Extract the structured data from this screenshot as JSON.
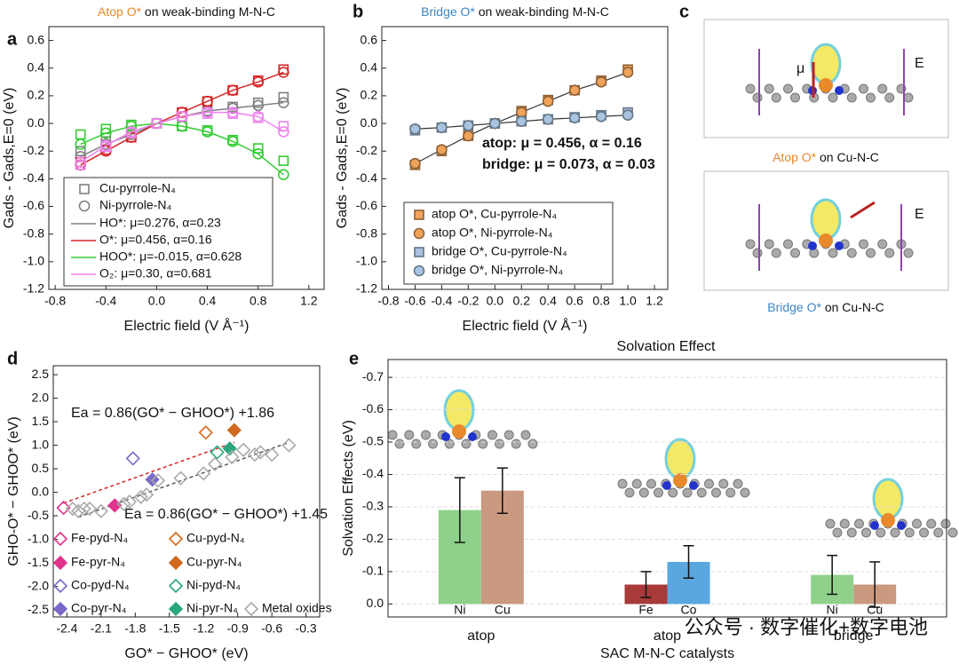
{
  "chart_data": [
    {
      "type": "line",
      "panel": "a",
      "title_parts": [
        "Atop O*",
        " on weak-binding M-N-C"
      ],
      "title_color": "#e8892b",
      "xlabel": "Electric field (V Å⁻¹)",
      "ylabel": "Gads - Gads,E=0 (eV)",
      "x": [
        -0.6,
        -0.4,
        -0.2,
        0,
        0.2,
        0.4,
        0.6,
        0.8,
        1.0
      ],
      "xlim": [
        -0.85,
        1.32
      ],
      "xticks": [
        -0.8,
        -0.4,
        {
          "value": 0,
          "label": "0.0"
        },
        0.4,
        0.8,
        1.2
      ],
      "ylim": [
        -1.2,
        0.7
      ],
      "yticks": [
        {
          "value": -1.2,
          "label": "-1.2"
        },
        {
          "value": -1,
          "label": "-1.0"
        },
        -0.8,
        -0.6,
        -0.4,
        -0.2,
        {
          "value": 0,
          "label": "0.0"
        },
        0.2,
        0.4,
        0.6
      ],
      "marker_legend": [
        "Cu-pyrrole-N₄",
        "Ni-pyrrole-N₄"
      ],
      "series": [
        {
          "name": "HO*: μ=0.276, α=0.23",
          "color": "#808080",
          "values_cu": [
            -0.2,
            -0.13,
            -0.07,
            0,
            0.05,
            0.09,
            0.12,
            0.15,
            0.19
          ],
          "values_ni": [
            -0.24,
            -0.15,
            -0.08,
            0,
            0.05,
            0.09,
            0.11,
            0.13,
            0.15
          ]
        },
        {
          "name": "O*: μ=0.456, α=0.16",
          "color": "#d62728",
          "values_cu": [
            -0.28,
            -0.19,
            -0.1,
            0,
            0.08,
            0.16,
            0.24,
            0.31,
            0.39
          ],
          "values_ni": [
            -0.3,
            -0.2,
            -0.1,
            0,
            0.08,
            0.16,
            0.24,
            0.3,
            0.37
          ]
        },
        {
          "name": "HOO*: μ=-0.015, α=0.628",
          "color": "#33cc33",
          "values_cu": [
            -0.08,
            -0.04,
            -0.01,
            0,
            -0.02,
            -0.05,
            -0.12,
            -0.18,
            -0.27
          ],
          "values_ni": [
            -0.15,
            -0.07,
            -0.02,
            0,
            -0.02,
            -0.06,
            -0.13,
            -0.22,
            -0.37
          ]
        },
        {
          "name": "O₂: μ=0.30, α=0.681",
          "color": "#ee82ee",
          "values_cu": [
            -0.3,
            -0.17,
            -0.07,
            0,
            0.05,
            0.07,
            0.07,
            0.04,
            -0.02
          ],
          "values_ni": [
            -0.28,
            -0.16,
            -0.06,
            0,
            0.05,
            0.08,
            0.08,
            0.05,
            -0.06
          ]
        }
      ]
    },
    {
      "type": "scatter",
      "panel": "b",
      "title_parts": [
        "Bridge O*",
        " on weak-binding M-N-C"
      ],
      "title_color": "#3a86c8",
      "xlabel": "Electric field (V Å⁻¹)",
      "ylabel": "Gads - Gads,E=0 (eV)",
      "x": [
        -0.6,
        -0.4,
        -0.2,
        0,
        0.2,
        0.4,
        0.6,
        0.8,
        1.0
      ],
      "xlim": [
        -0.85,
        1.3
      ],
      "xticks": [
        -0.8,
        -0.6,
        -0.4,
        -0.2,
        {
          "value": 0,
          "label": "0.0"
        },
        0.2,
        0.4,
        0.6,
        0.8,
        {
          "value": 1,
          "label": "1.0"
        },
        1.2
      ],
      "ylim": [
        -1.2,
        0.7
      ],
      "yticks": [
        {
          "value": -1.2,
          "label": "-1.2"
        },
        {
          "value": -1,
          "label": "-1.0"
        },
        -0.8,
        -0.6,
        -0.4,
        -0.2,
        {
          "value": 0,
          "label": "0.0"
        },
        0.2,
        0.4,
        0.6
      ],
      "line_color": "#333333",
      "annotations": [
        {
          "text": "atop: μ = 0.456, α = 0.16",
          "color": "#e8892b"
        },
        {
          "text": "bridge: μ = 0.073, α = 0.03",
          "color": "#5b9bd5"
        }
      ],
      "series": [
        {
          "name": "atop O*, Cu-pyrrole-N₄",
          "color": "#f0a35a",
          "marker": "square",
          "fit_line": false,
          "values": [
            -0.3,
            -0.2,
            -0.09,
            0,
            0.09,
            0.17,
            0.24,
            0.31,
            0.39
          ]
        },
        {
          "name": "atop O*, Ni-pyrrole-N₄",
          "color": "#f0a35a",
          "marker": "circle",
          "fit_line": true,
          "values": [
            -0.29,
            -0.19,
            -0.09,
            0,
            0.08,
            0.16,
            0.24,
            0.3,
            0.37
          ]
        },
        {
          "name": "bridge O*, Cu-pyrrole-N₄",
          "color": "#a9c4e0",
          "marker": "square",
          "fit_line": false,
          "values": [
            -0.05,
            -0.03,
            -0.015,
            0,
            0.015,
            0.03,
            0.045,
            0.06,
            0.08
          ]
        },
        {
          "name": "bridge O*, Ni-pyrrole-N₄",
          "color": "#a9c4e0",
          "marker": "circle",
          "fit_line": true,
          "values": [
            -0.04,
            -0.03,
            -0.015,
            0,
            0.015,
            0.03,
            0.04,
            0.05,
            0.06
          ]
        }
      ]
    },
    {
      "type": "scatter",
      "panel": "d",
      "xlabel": "GO* − GHOO* (eV)",
      "ylabel": "GHO-O* − GHOO* (eV)",
      "xlim": [
        -2.52,
        -0.18
      ],
      "xticks": [
        -2.4,
        -2.1,
        -1.8,
        -1.5,
        -1.2,
        -0.9,
        -0.6,
        -0.3
      ],
      "ylim": [
        -2.65,
        2.69
      ],
      "yticks": [
        -2.5,
        {
          "value": -2,
          "label": "-2.0"
        },
        -1.5,
        {
          "value": -1,
          "label": "-1.0"
        },
        -0.5,
        {
          "value": 0,
          "label": "0.0"
        },
        0.5,
        {
          "value": 1,
          "label": "1.0"
        },
        1.5,
        {
          "value": 2,
          "label": "2.0"
        },
        2.5
      ],
      "fit_lines": [
        {
          "label": "Ea = 0.86(GO* − GHOO*) +1.86",
          "color": "#d62728",
          "x": [
            -2.43,
            -0.93
          ],
          "y": [
            -0.23,
            1.06
          ]
        },
        {
          "label": "Ea = 0.86(GO* − GHOO*) +1.45",
          "color": "#555555",
          "x": [
            -2.3,
            -0.45
          ],
          "y": [
            -0.53,
            1.06
          ]
        }
      ],
      "series": [
        {
          "name": "Fe-pyd-N₄",
          "color": "#e0338c",
          "filled": false,
          "x": [
            -2.43
          ],
          "values": [
            -0.33
          ]
        },
        {
          "name": "Cu-pyd-N₄",
          "color": "#d2691e",
          "filled": false,
          "x": [
            -1.18
          ],
          "values": [
            1.27
          ]
        },
        {
          "name": "Fe-pyr-N₄",
          "color": "#e0338c",
          "filled": true,
          "x": [
            -1.98
          ],
          "values": [
            -0.28
          ]
        },
        {
          "name": "Cu-pyr-N₄",
          "color": "#d2691e",
          "filled": true,
          "x": [
            -0.93
          ],
          "values": [
            1.32
          ]
        },
        {
          "name": "Co-pyd-N₄",
          "color": "#7b68c8",
          "filled": false,
          "x": [
            -1.82
          ],
          "values": [
            0.72
          ]
        },
        {
          "name": "Ni-pyd-N₄",
          "color": "#2aa77a",
          "filled": false,
          "x": [
            -1.08
          ],
          "values": [
            0.85
          ]
        },
        {
          "name": "Co-pyr-N₄",
          "color": "#7b68c8",
          "filled": true,
          "x": [
            -1.65
          ],
          "values": [
            0.27
          ]
        },
        {
          "name": "Ni-pyr-N₄",
          "color": "#2aa77a",
          "filled": true,
          "x": [
            -0.97
          ],
          "values": [
            0.93
          ]
        },
        {
          "name": "Metal oxides",
          "color": "#aaaaaa",
          "filled": false,
          "x": [
            -2.35,
            -2.3,
            -2.25,
            -2.2,
            -2.1,
            -1.9,
            -1.85,
            -1.75,
            -1.7,
            -1.6,
            -1.4,
            -1.2,
            -1.1,
            -0.95,
            -0.85,
            -0.75,
            -0.7,
            -0.6,
            -0.45
          ],
          "values": [
            -0.35,
            -0.4,
            -0.35,
            -0.35,
            -0.4,
            -0.25,
            -0.2,
            -0.1,
            -0.05,
            0.25,
            0.3,
            0.4,
            0.6,
            0.75,
            0.9,
            0.8,
            0.85,
            0.8,
            1.0
          ]
        }
      ]
    },
    {
      "type": "bar",
      "panel": "e",
      "title": "Solvation Effect",
      "xlabel": "SAC M-N-C catalysts",
      "ylabel": "Solvation Effects (eV)",
      "categories": [
        "Ni",
        "Cu",
        "Fe",
        "Co",
        "Ni",
        "Cu"
      ],
      "groups": [
        "atop",
        "atop",
        "bridge"
      ],
      "values": [
        -0.29,
        -0.35,
        -0.06,
        -0.13,
        -0.09,
        -0.06
      ],
      "errors": [
        0.1,
        0.07,
        0.04,
        0.05,
        0.06,
        0.07
      ],
      "colors": [
        "#8fd18a",
        "#c99a80",
        "#a83a3a",
        "#5aa7e0",
        "#8fd18a",
        "#c99a80"
      ],
      "ylim": [
        0.04,
        -0.755
      ],
      "yticks": [
        {
          "value": 0,
          "label": "0.0"
        },
        -0.1,
        -0.2,
        -0.3,
        -0.4,
        -0.5,
        -0.6,
        -0.7
      ],
      "grid": true
    }
  ],
  "panel_c": {
    "letter": "c",
    "top_caption": [
      "Atop O*",
      " on Cu-N-C"
    ],
    "bottom_caption": [
      "Bridge O*",
      " on Cu-N-C"
    ],
    "labels": [
      "μ",
      "E",
      "E"
    ]
  },
  "watermark": "公众号 · 数字催化+数字电池"
}
